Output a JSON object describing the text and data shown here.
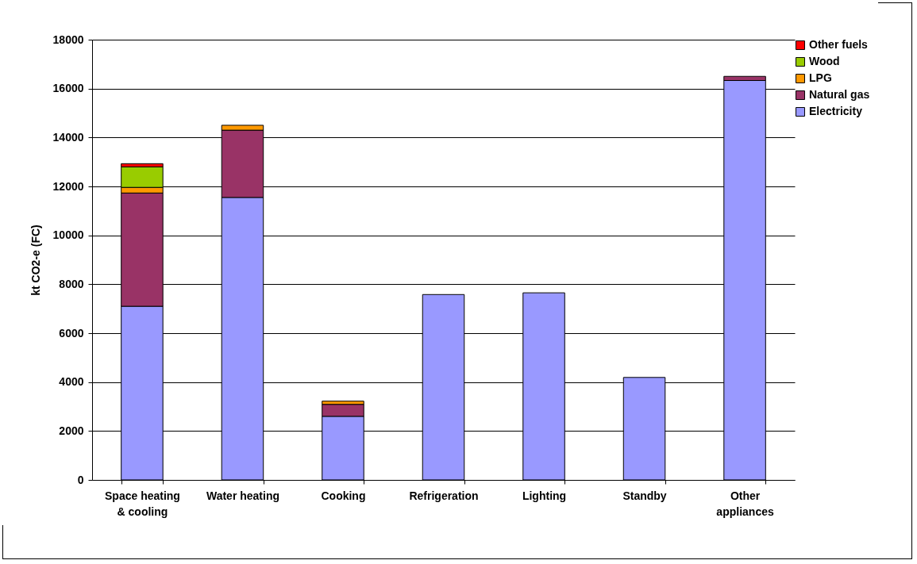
{
  "chart_data": {
    "type": "bar",
    "ylabel": "kt CO2-e (FC)",
    "categories": [
      "Space heating & cooling",
      "Water heating",
      "Cooking",
      "Refrigeration",
      "Lighting",
      "Standby",
      "Other appliances"
    ],
    "stacked": true,
    "series": [
      {
        "name": "Electricity",
        "color": "#9999ff",
        "values": [
          7100,
          11550,
          2600,
          7580,
          7650,
          4190,
          16330
        ]
      },
      {
        "name": "Natural gas",
        "color": "#993366",
        "values": [
          4630,
          2750,
          490,
          null,
          null,
          null,
          170
        ]
      },
      {
        "name": "LPG",
        "color": "#ff9900",
        "values": [
          230,
          200,
          130,
          null,
          null,
          null,
          null
        ]
      },
      {
        "name": "Wood",
        "color": "#99cc00",
        "values": [
          840,
          null,
          null,
          null,
          null,
          null,
          null
        ]
      },
      {
        "name": "Other fuels",
        "color": "#ff0000",
        "values": [
          130,
          null,
          null,
          null,
          null,
          null,
          null
        ]
      }
    ],
    "ylim": [
      0,
      18000
    ],
    "yticks": [
      0,
      2000,
      4000,
      6000,
      8000,
      10000,
      12000,
      14000,
      16000,
      18000
    ],
    "grid": "y",
    "legend": "right"
  }
}
